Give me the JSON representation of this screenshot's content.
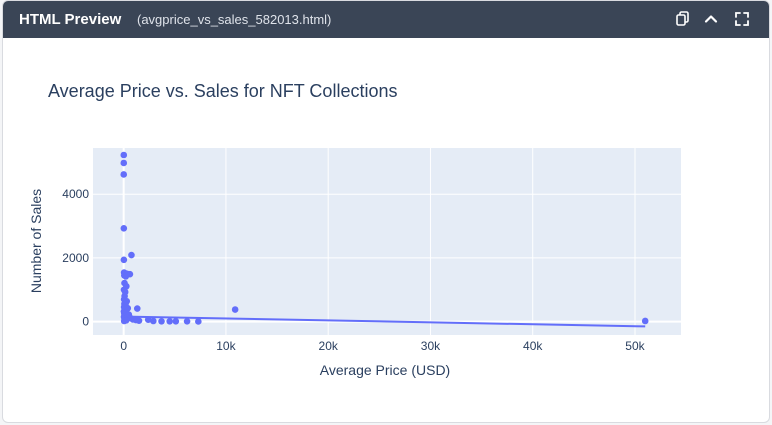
{
  "window": {
    "title": "HTML Preview",
    "filename": "(avgprice_vs_sales_582013.html)",
    "icons": [
      "copy-icon",
      "chevron-up-icon",
      "fullscreen-icon"
    ]
  },
  "colors": {
    "header_bg": "#3a4556",
    "plot_bg": "#e5ecf6",
    "marker": "#636efa",
    "text": "#2a3f5f"
  },
  "chart_data": {
    "type": "scatter",
    "title": "Average Price vs. Sales for NFT Collections",
    "xlabel": "Average Price (USD)",
    "ylabel": "Number of Sales",
    "xlim": [
      -3000,
      54500
    ],
    "ylim": [
      -420,
      5450
    ],
    "xticks": [
      0,
      10000,
      20000,
      30000,
      40000,
      50000
    ],
    "xtick_labels": [
      "0",
      "10k",
      "20k",
      "30k",
      "40k",
      "50k"
    ],
    "yticks": [
      0,
      2000,
      4000
    ],
    "ytick_labels": [
      "0",
      "2000",
      "4000"
    ],
    "grid": true,
    "legend": "none",
    "points": [
      {
        "x": 10,
        "y": 5230
      },
      {
        "x": 8,
        "y": 4980
      },
      {
        "x": 5,
        "y": 4620
      },
      {
        "x": 15,
        "y": 2930
      },
      {
        "x": 760,
        "y": 2090
      },
      {
        "x": 20,
        "y": 1940
      },
      {
        "x": 40,
        "y": 1540
      },
      {
        "x": 120,
        "y": 1520
      },
      {
        "x": 330,
        "y": 1500
      },
      {
        "x": 610,
        "y": 1490
      },
      {
        "x": 60,
        "y": 1450
      },
      {
        "x": 210,
        "y": 1420
      },
      {
        "x": 80,
        "y": 1210
      },
      {
        "x": 260,
        "y": 1110
      },
      {
        "x": 30,
        "y": 1000
      },
      {
        "x": 150,
        "y": 930
      },
      {
        "x": 90,
        "y": 800
      },
      {
        "x": 40,
        "y": 700
      },
      {
        "x": 300,
        "y": 640
      },
      {
        "x": 70,
        "y": 560
      },
      {
        "x": 180,
        "y": 520
      },
      {
        "x": 40,
        "y": 460
      },
      {
        "x": 400,
        "y": 420
      },
      {
        "x": 1330,
        "y": 410
      },
      {
        "x": 110,
        "y": 360
      },
      {
        "x": 20,
        "y": 320
      },
      {
        "x": 220,
        "y": 290
      },
      {
        "x": 60,
        "y": 250
      },
      {
        "x": 500,
        "y": 220
      },
      {
        "x": 140,
        "y": 180
      },
      {
        "x": 30,
        "y": 150
      },
      {
        "x": 350,
        "y": 130
      },
      {
        "x": 680,
        "y": 110
      },
      {
        "x": 80,
        "y": 90
      },
      {
        "x": 900,
        "y": 70
      },
      {
        "x": 1200,
        "y": 50
      },
      {
        "x": 250,
        "y": 40
      },
      {
        "x": 1500,
        "y": 30
      },
      {
        "x": 50,
        "y": 20
      },
      {
        "x": 2400,
        "y": 60
      },
      {
        "x": 2900,
        "y": 20
      },
      {
        "x": 3700,
        "y": 10
      },
      {
        "x": 4500,
        "y": 10
      },
      {
        "x": 5100,
        "y": 10
      },
      {
        "x": 6200,
        "y": 10
      },
      {
        "x": 7300,
        "y": 5
      },
      {
        "x": 10900,
        "y": 380
      },
      {
        "x": 51000,
        "y": 20
      }
    ],
    "trendline": {
      "x": [
        0,
        51000
      ],
      "y": [
        160,
        -150
      ]
    }
  }
}
